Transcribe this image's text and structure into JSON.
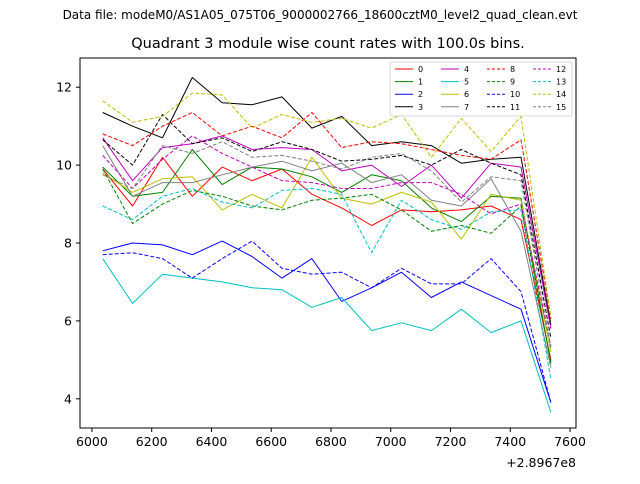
{
  "figure": {
    "data_file_text": "Data file: modeM0/AS1A05_075T06_9000002766_18600cztM0_level2_quad_clean.evt"
  },
  "chart_data": {
    "type": "line",
    "title": "Quadrant 3 module wise count rates with 100.0s bins.",
    "xlabel": "",
    "ylabel": "",
    "x_offset_label": "+2.8967e8",
    "x_offset": 289670000,
    "xlim": [
      5960,
      7620
    ],
    "ylim": [
      3.25,
      12.75
    ],
    "x": [
      6036,
      6136,
      6236,
      6336,
      6436,
      6536,
      6636,
      6736,
      6836,
      6936,
      7036,
      7136,
      7236,
      7336,
      7436,
      7536
    ],
    "x_ticks": [
      {
        "value": 6000,
        "label": "6000"
      },
      {
        "value": 6200,
        "label": "6200"
      },
      {
        "value": 6400,
        "label": "6400"
      },
      {
        "value": 6600,
        "label": "6600"
      },
      {
        "value": 6800,
        "label": "6800"
      },
      {
        "value": 7000,
        "label": "7000"
      },
      {
        "value": 7200,
        "label": "7200"
      },
      {
        "value": 7400,
        "label": "7400"
      },
      {
        "value": 7600,
        "label": "7600"
      }
    ],
    "y_ticks": [
      {
        "value": 4,
        "label": "4"
      },
      {
        "value": 6,
        "label": "6"
      },
      {
        "value": 8,
        "label": "8"
      },
      {
        "value": 10,
        "label": "10"
      },
      {
        "value": 12,
        "label": "12"
      }
    ],
    "legend_position": "top-right",
    "legend_columns": 4,
    "series": [
      {
        "name": "0",
        "color": "#ff0000",
        "dash": "solid",
        "values": [
          9.9,
          8.95,
          10.2,
          9.2,
          9.95,
          9.6,
          9.9,
          9.25,
          8.9,
          8.45,
          8.85,
          8.8,
          8.85,
          8.95,
          8.6,
          5.0
        ]
      },
      {
        "name": "1",
        "color": "#008000",
        "dash": "solid",
        "values": [
          9.95,
          9.2,
          9.3,
          10.4,
          9.5,
          9.95,
          9.9,
          9.7,
          9.3,
          9.75,
          9.6,
          8.9,
          8.55,
          9.2,
          9.15,
          4.9
        ]
      },
      {
        "name": "2",
        "color": "#0000ff",
        "dash": "solid",
        "values": [
          7.8,
          8.0,
          7.95,
          7.7,
          8.05,
          7.65,
          7.1,
          7.6,
          6.5,
          6.85,
          7.25,
          6.6,
          7.0,
          6.65,
          6.3,
          3.9
        ]
      },
      {
        "name": "3",
        "color": "#000000",
        "dash": "solid",
        "values": [
          11.35,
          11.0,
          10.7,
          12.25,
          11.6,
          11.55,
          11.75,
          10.95,
          11.25,
          10.5,
          10.6,
          10.5,
          10.05,
          10.15,
          10.2,
          5.9
        ]
      },
      {
        "name": "4",
        "color": "#bf00bf",
        "dash": "solid",
        "values": [
          10.7,
          9.6,
          10.45,
          10.55,
          10.75,
          10.4,
          10.45,
          10.4,
          9.85,
          10.0,
          9.45,
          10.0,
          9.15,
          10.05,
          9.95,
          5.8
        ]
      },
      {
        "name": "5",
        "color": "#00bfbf",
        "dash": "solid",
        "values": [
          7.6,
          6.45,
          7.2,
          7.1,
          7.0,
          6.85,
          6.8,
          6.35,
          6.6,
          5.75,
          5.95,
          5.75,
          6.3,
          5.7,
          6.0,
          3.65
        ]
      },
      {
        "name": "6",
        "color": "#bfbf00",
        "dash": "solid",
        "values": [
          9.8,
          9.3,
          9.65,
          9.7,
          8.85,
          9.25,
          8.9,
          10.2,
          9.15,
          9.0,
          9.3,
          9.05,
          8.1,
          9.25,
          9.1,
          5.2
        ]
      },
      {
        "name": "7",
        "color": "#808080",
        "dash": "solid",
        "values": [
          10.5,
          9.2,
          9.55,
          9.55,
          9.75,
          9.95,
          10.1,
          9.85,
          10.05,
          9.55,
          9.75,
          9.1,
          8.95,
          9.65,
          8.3,
          4.8
        ]
      },
      {
        "name": "8",
        "color": "#ff0000",
        "dash": "dashed",
        "values": [
          10.8,
          10.5,
          11.0,
          11.35,
          10.75,
          11.0,
          10.7,
          11.35,
          10.45,
          10.6,
          10.55,
          10.4,
          10.25,
          10.15,
          10.65,
          6.05
        ]
      },
      {
        "name": "9",
        "color": "#008000",
        "dash": "dashed",
        "values": [
          9.9,
          8.5,
          9.0,
          9.35,
          9.2,
          8.95,
          8.85,
          9.1,
          9.15,
          9.25,
          8.85,
          8.3,
          8.45,
          8.25,
          8.95,
          4.95
        ]
      },
      {
        "name": "10",
        "color": "#0000ff",
        "dash": "dashed",
        "values": [
          7.7,
          7.75,
          7.6,
          7.1,
          7.6,
          8.05,
          7.35,
          7.2,
          7.25,
          6.85,
          7.35,
          6.95,
          6.95,
          7.6,
          6.75,
          3.9
        ]
      },
      {
        "name": "11",
        "color": "#000000",
        "dash": "dashed",
        "values": [
          10.65,
          10.0,
          11.3,
          10.55,
          10.7,
          10.35,
          10.6,
          10.4,
          10.1,
          10.15,
          10.25,
          10.0,
          10.4,
          10.05,
          9.75,
          5.55
        ]
      },
      {
        "name": "12",
        "color": "#bf00bf",
        "dash": "dashed",
        "values": [
          10.25,
          9.4,
          10.15,
          10.75,
          10.3,
          9.95,
          9.6,
          9.55,
          9.4,
          9.4,
          9.55,
          9.55,
          9.25,
          8.75,
          9.0,
          5.35
        ]
      },
      {
        "name": "13",
        "color": "#00bfbf",
        "dash": "dashed",
        "values": [
          8.95,
          8.6,
          9.2,
          9.4,
          9.05,
          8.9,
          9.35,
          9.4,
          9.25,
          7.75,
          9.1,
          8.6,
          8.35,
          8.8,
          8.85,
          4.5
        ]
      },
      {
        "name": "14",
        "color": "#bfbf00",
        "dash": "dashed",
        "values": [
          11.65,
          11.1,
          11.25,
          11.85,
          11.8,
          10.95,
          11.3,
          11.1,
          11.2,
          10.95,
          11.3,
          10.2,
          11.2,
          10.35,
          11.25,
          6.1
        ]
      },
      {
        "name": "15",
        "color": "#808080",
        "dash": "dashed",
        "values": [
          9.75,
          9.4,
          10.5,
          10.3,
          10.6,
          10.2,
          10.25,
          10.1,
          9.9,
          10.2,
          10.3,
          9.85,
          9.05,
          9.7,
          9.6,
          5.3
        ]
      }
    ]
  }
}
